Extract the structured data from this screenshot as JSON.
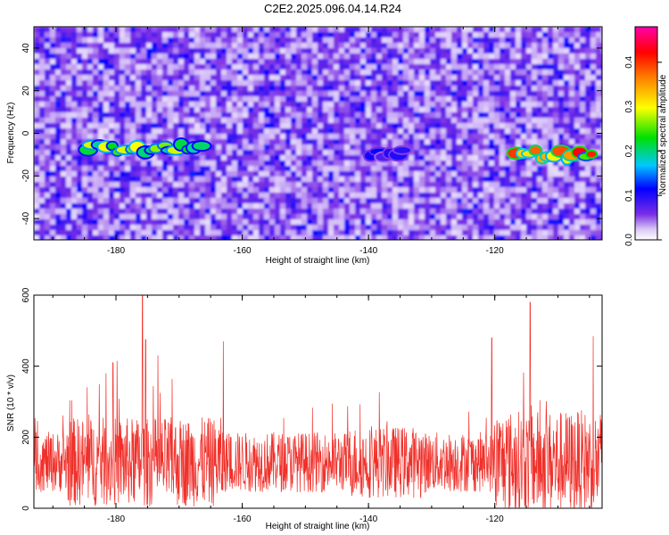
{
  "figure": {
    "title": "C2E2.2025.096.04.14.R24"
  },
  "chart_data": [
    {
      "type": "heatmap",
      "xlabel": "Height of straight line (km)",
      "ylabel": "Frequency (Hz)",
      "xlim": [
        -193,
        -103
      ],
      "ylim": [
        -50,
        50
      ],
      "xticks": [
        -180,
        -160,
        -140,
        -120
      ],
      "yticks": [
        -40,
        -20,
        0,
        20,
        40
      ],
      "colorbar": {
        "label": "Normalized spectral amplitude",
        "range": [
          0,
          0.48
        ],
        "ticks": [
          0.0,
          0.1,
          0.2,
          0.3,
          0.4
        ],
        "colormap": [
          "#ffffff",
          "#7a2ee6",
          "#0000ff",
          "#00c8ff",
          "#00e000",
          "#ffff00",
          "#ff8000",
          "#ff0000",
          "#ff00aa"
        ]
      },
      "features": [
        {
          "x_range": [
            -185,
            -166
          ],
          "frequency": -7,
          "peak_amplitude": 0.3
        },
        {
          "x_range": [
            -140,
            -134
          ],
          "frequency": -10,
          "peak_amplitude": 0.12
        },
        {
          "x_range": [
            -117,
            -104
          ],
          "frequency": -10,
          "peak_amplitude": 0.45
        }
      ]
    },
    {
      "type": "line",
      "xlabel": "Height of straight line (km)",
      "ylabel": "SNR (10 * v/v)",
      "xlim": [
        -193,
        -103
      ],
      "ylim": [
        0,
        600
      ],
      "xticks": [
        -180,
        -160,
        -140,
        -120
      ],
      "yticks": [
        0,
        200,
        400,
        600
      ],
      "series": [
        {
          "color": "#f0302a",
          "baseline": 130,
          "peaks": [
            {
              "x": -175.8,
              "y": 600
            },
            {
              "x": -175.3,
              "y": 475
            },
            {
              "x": -114.4,
              "y": 580
            },
            {
              "x": -120.5,
              "y": 480
            },
            {
              "x": -180.5,
              "y": 410
            },
            {
              "x": -163.0,
              "y": 470
            }
          ]
        }
      ]
    }
  ]
}
